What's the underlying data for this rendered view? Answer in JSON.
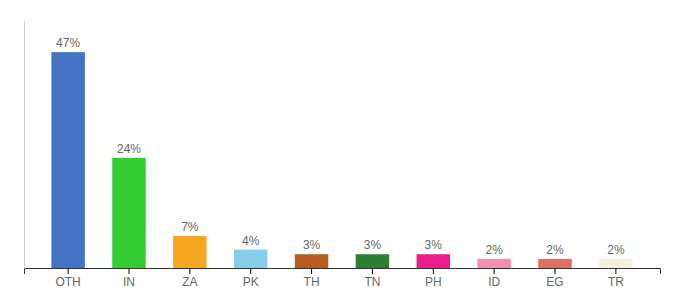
{
  "chart_data": {
    "type": "bar",
    "categories": [
      "OTH",
      "IN",
      "ZA",
      "PK",
      "TH",
      "TN",
      "PH",
      "ID",
      "EG",
      "TR"
    ],
    "values": [
      47,
      24,
      7,
      4,
      3,
      3,
      3,
      2,
      2,
      2
    ],
    "value_labels": [
      "47%",
      "24%",
      "7%",
      "4%",
      "3%",
      "3%",
      "3%",
      "2%",
      "2%",
      "2%"
    ],
    "colors": [
      "#4472c4",
      "#33cc33",
      "#f5a623",
      "#87ceeb",
      "#b85c20",
      "#2e7d32",
      "#e91e8c",
      "#f48fb1",
      "#e07060",
      "#f5f0dc"
    ],
    "ylim": [
      0,
      54
    ],
    "data_labels": true,
    "tick_labels": "x",
    "grid": false
  }
}
